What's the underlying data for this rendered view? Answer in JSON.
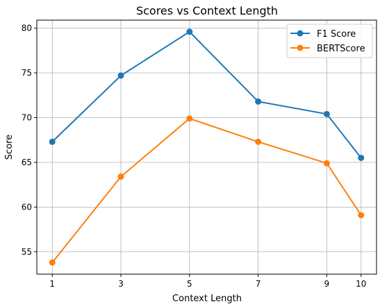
{
  "chart_data": {
    "type": "line",
    "title": "Scores vs Context Length",
    "xlabel": "Context Length",
    "ylabel": "Score",
    "x": [
      1,
      3,
      5,
      7,
      9,
      10
    ],
    "xticks": [
      1,
      3,
      5,
      7,
      9,
      10
    ],
    "yticks": [
      55,
      60,
      65,
      70,
      75,
      80
    ],
    "xlim": [
      0.55,
      10.45
    ],
    "ylim": [
      52.5,
      80.9
    ],
    "grid": true,
    "legend_position": "top-right",
    "series": [
      {
        "name": "F1 Score",
        "color": "#1f77b4",
        "values": [
          67.3,
          74.7,
          79.6,
          71.8,
          70.4,
          65.5
        ]
      },
      {
        "name": "BERTScore",
        "color": "#ff7f0e",
        "values": [
          53.8,
          63.4,
          69.9,
          67.3,
          64.9,
          59.1
        ]
      }
    ]
  }
}
